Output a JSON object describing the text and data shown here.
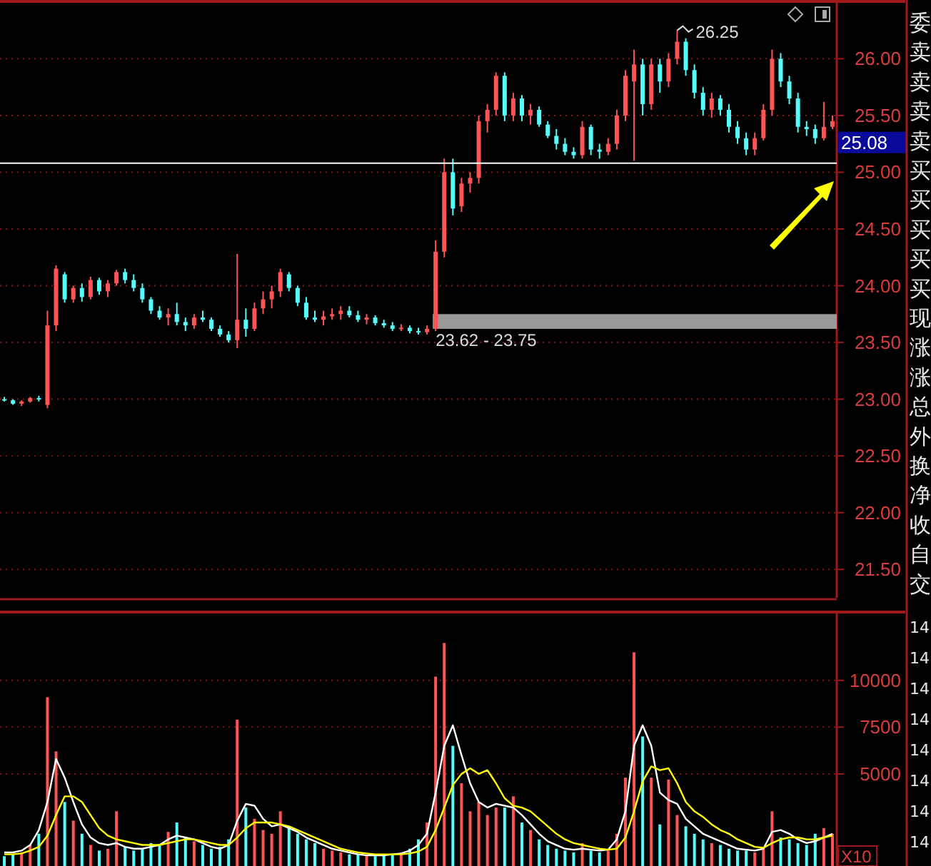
{
  "chart_data": [
    {
      "type": "candlestick",
      "categories": [
        null,
        null,
        null,
        null,
        null,
        null,
        null,
        null,
        null,
        null,
        null,
        null,
        null,
        null,
        null,
        null,
        null,
        null,
        null,
        null,
        null,
        null,
        null,
        null,
        null,
        null,
        null,
        null,
        null,
        null,
        null,
        null,
        null,
        null,
        null,
        null,
        null,
        null,
        null,
        null,
        null,
        null,
        null,
        null,
        null,
        null,
        null,
        null,
        null,
        null,
        null,
        null,
        null,
        null,
        null,
        null,
        null,
        null,
        null,
        null,
        null,
        null,
        null,
        null,
        null,
        null,
        null,
        null,
        null,
        null,
        null,
        null,
        null,
        null,
        null,
        null,
        null,
        null,
        null,
        null,
        null,
        null,
        null,
        null,
        null,
        null,
        null,
        null,
        null,
        null,
        null,
        null,
        null,
        null,
        null,
        null,
        null
      ],
      "ohlc": [
        [
          23.0,
          23.02,
          22.98,
          22.99
        ],
        [
          22.99,
          23.0,
          22.95,
          22.96
        ],
        [
          22.96,
          22.99,
          22.94,
          22.98
        ],
        [
          22.98,
          23.02,
          22.97,
          23.01
        ],
        [
          23.01,
          23.03,
          22.98,
          23.0
        ],
        [
          22.95,
          23.78,
          22.92,
          23.65
        ],
        [
          23.65,
          24.18,
          23.6,
          24.15
        ],
        [
          24.1,
          24.12,
          23.85,
          23.88
        ],
        [
          23.88,
          24.0,
          23.85,
          23.98
        ],
        [
          23.98,
          24.02,
          23.86,
          23.9
        ],
        [
          23.9,
          24.08,
          23.88,
          24.05
        ],
        [
          24.05,
          24.07,
          23.92,
          23.95
        ],
        [
          23.95,
          24.05,
          23.9,
          24.02
        ],
        [
          24.02,
          24.14,
          24.0,
          24.12
        ],
        [
          24.12,
          24.15,
          24.02,
          24.05
        ],
        [
          24.05,
          24.1,
          23.95,
          23.98
        ],
        [
          23.98,
          24.02,
          23.85,
          23.88
        ],
        [
          23.88,
          23.9,
          23.75,
          23.78
        ],
        [
          23.78,
          23.82,
          23.7,
          23.72
        ],
        [
          23.72,
          23.8,
          23.65,
          23.75
        ],
        [
          23.75,
          23.85,
          23.65,
          23.68
        ],
        [
          23.68,
          23.72,
          23.6,
          23.65
        ],
        [
          23.65,
          23.75,
          23.62,
          23.72
        ],
        [
          23.72,
          23.78,
          23.68,
          23.7
        ],
        [
          23.7,
          23.72,
          23.6,
          23.62
        ],
        [
          23.62,
          23.65,
          23.55,
          23.57
        ],
        [
          23.57,
          23.6,
          23.5,
          23.52
        ],
        [
          23.52,
          24.28,
          23.45,
          23.7
        ],
        [
          23.7,
          23.8,
          23.55,
          23.62
        ],
        [
          23.62,
          23.85,
          23.6,
          23.8
        ],
        [
          23.8,
          23.95,
          23.75,
          23.88
        ],
        [
          23.88,
          24.0,
          23.8,
          23.95
        ],
        [
          23.95,
          24.15,
          23.9,
          24.12
        ],
        [
          24.1,
          24.12,
          23.95,
          23.98
        ],
        [
          23.98,
          24.0,
          23.82,
          23.85
        ],
        [
          23.85,
          23.9,
          23.7,
          23.72
        ],
        [
          23.72,
          23.78,
          23.68,
          23.7
        ],
        [
          23.7,
          23.78,
          23.65,
          23.73
        ],
        [
          23.73,
          23.8,
          23.7,
          23.75
        ],
        [
          23.75,
          23.82,
          23.7,
          23.78
        ],
        [
          23.78,
          23.82,
          23.72,
          23.74
        ],
        [
          23.74,
          23.78,
          23.68,
          23.7
        ],
        [
          23.7,
          23.75,
          23.66,
          23.72
        ],
        [
          23.72,
          23.74,
          23.65,
          23.67
        ],
        [
          23.67,
          23.7,
          23.63,
          23.65
        ],
        [
          23.65,
          23.68,
          23.6,
          23.62
        ],
        [
          23.62,
          23.66,
          23.6,
          23.63
        ],
        [
          23.63,
          23.65,
          23.58,
          23.6
        ],
        [
          23.6,
          23.63,
          23.57,
          23.59
        ],
        [
          23.59,
          23.65,
          23.57,
          23.62
        ],
        [
          23.62,
          24.4,
          23.6,
          24.3
        ],
        [
          24.3,
          25.12,
          24.25,
          25.0
        ],
        [
          25.0,
          25.12,
          24.62,
          24.68
        ],
        [
          24.7,
          24.95,
          24.65,
          24.9
        ],
        [
          24.9,
          25.0,
          24.82,
          24.95
        ],
        [
          24.95,
          25.5,
          24.9,
          25.45
        ],
        [
          25.45,
          25.6,
          25.35,
          25.55
        ],
        [
          25.55,
          25.88,
          25.5,
          25.85
        ],
        [
          25.85,
          25.88,
          25.45,
          25.5
        ],
        [
          25.5,
          25.7,
          25.45,
          25.65
        ],
        [
          25.65,
          25.68,
          25.45,
          25.5
        ],
        [
          25.5,
          25.6,
          25.42,
          25.55
        ],
        [
          25.55,
          25.58,
          25.4,
          25.42
        ],
        [
          25.42,
          25.45,
          25.3,
          25.32
        ],
        [
          25.32,
          25.38,
          25.2,
          25.25
        ],
        [
          25.25,
          25.3,
          25.15,
          25.18
        ],
        [
          25.18,
          25.22,
          25.12,
          25.15
        ],
        [
          25.15,
          25.45,
          25.12,
          25.4
        ],
        [
          25.4,
          25.42,
          25.15,
          25.2
        ],
        [
          25.2,
          25.25,
          25.12,
          25.18
        ],
        [
          25.18,
          25.3,
          25.15,
          25.25
        ],
        [
          25.25,
          25.55,
          25.2,
          25.5
        ],
        [
          25.5,
          25.9,
          25.45,
          25.85
        ],
        [
          25.8,
          26.08,
          25.1,
          25.95
        ],
        [
          25.95,
          26.0,
          25.5,
          25.6
        ],
        [
          25.6,
          26.0,
          25.55,
          25.95
        ],
        [
          25.95,
          26.0,
          25.7,
          25.8
        ],
        [
          25.8,
          26.05,
          25.75,
          26.0
        ],
        [
          26.0,
          26.25,
          25.95,
          26.15
        ],
        [
          26.15,
          26.18,
          25.85,
          25.9
        ],
        [
          25.9,
          25.95,
          25.65,
          25.7
        ],
        [
          25.7,
          25.75,
          25.5,
          25.55
        ],
        [
          25.55,
          25.7,
          25.48,
          25.65
        ],
        [
          25.65,
          25.68,
          25.5,
          25.55
        ],
        [
          25.55,
          25.6,
          25.35,
          25.4
        ],
        [
          25.4,
          25.45,
          25.25,
          25.3
        ],
        [
          25.3,
          25.35,
          25.15,
          25.2
        ],
        [
          25.2,
          25.35,
          25.15,
          25.3
        ],
        [
          25.3,
          25.6,
          25.28,
          25.55
        ],
        [
          25.55,
          26.08,
          25.5,
          26.0
        ],
        [
          26.0,
          26.05,
          25.75,
          25.8
        ],
        [
          25.8,
          25.85,
          25.6,
          25.65
        ],
        [
          25.65,
          25.7,
          25.35,
          25.4
        ],
        [
          25.4,
          25.45,
          25.32,
          25.38
        ],
        [
          25.38,
          25.42,
          25.25,
          25.3
        ],
        [
          25.3,
          25.62,
          25.28,
          25.4
        ],
        [
          25.4,
          25.5,
          25.38,
          25.45
        ]
      ],
      "colors": [
        "#54fcfc",
        "#54fcfc",
        "#ff5454",
        "#ff5454",
        "#54fcfc",
        "#ff5454",
        "#ff5454",
        "#54fcfc",
        "#ff5454",
        "#54fcfc",
        "#ff5454",
        "#54fcfc",
        "#ff5454",
        "#ff5454",
        "#54fcfc",
        "#54fcfc",
        "#54fcfc",
        "#54fcfc",
        "#54fcfc",
        "#ff5454",
        "#54fcfc",
        "#54fcfc",
        "#ff5454",
        "#54fcfc",
        "#54fcfc",
        "#54fcfc",
        "#54fcfc",
        "#ff5454",
        "#54fcfc",
        "#ff5454",
        "#ff5454",
        "#ff5454",
        "#ff5454",
        "#54fcfc",
        "#54fcfc",
        "#54fcfc",
        "#54fcfc",
        "#ff5454",
        "#ff5454",
        "#ff5454",
        "#54fcfc",
        "#54fcfc",
        "#ff5454",
        "#54fcfc",
        "#54fcfc",
        "#54fcfc",
        "#ff5454",
        "#54fcfc",
        "#54fcfc",
        "#ff5454",
        "#ff5454",
        "#ff5454",
        "#54fcfc",
        "#ff5454",
        "#ff5454",
        "#ff5454",
        "#ff5454",
        "#ff5454",
        "#54fcfc",
        "#ff5454",
        "#54fcfc",
        "#ff5454",
        "#54fcfc",
        "#54fcfc",
        "#54fcfc",
        "#54fcfc",
        "#54fcfc",
        "#ff5454",
        "#54fcfc",
        "#54fcfc",
        "#ff5454",
        "#ff5454",
        "#ff5454",
        "#ff5454",
        "#54fcfc",
        "#ff5454",
        "#54fcfc",
        "#ff5454",
        "#ff5454",
        "#54fcfc",
        "#54fcfc",
        "#54fcfc",
        "#ff5454",
        "#54fcfc",
        "#54fcfc",
        "#54fcfc",
        "#54fcfc",
        "#ff5454",
        "#ff5454",
        "#ff5454",
        "#54fcfc",
        "#54fcfc",
        "#54fcfc",
        "#54fcfc",
        "#54fcfc",
        "#ff5454",
        "#ff5454"
      ],
      "ylim": [
        21.25,
        26.48
      ],
      "yticks": [
        {
          "value": 21.5,
          "label": "21.50"
        },
        {
          "value": 22,
          "label": "22.00"
        },
        {
          "value": 22.5,
          "label": "22.50"
        },
        {
          "value": 23,
          "label": "23.00"
        },
        {
          "value": 23.5,
          "label": "23.50"
        },
        {
          "value": 24,
          "label": "24.00"
        },
        {
          "value": 24.5,
          "label": "24.50"
        },
        {
          "value": 25,
          "label": "25.00"
        },
        {
          "value": 25.5,
          "label": "25.50"
        },
        {
          "value": 26,
          "label": "26.00"
        }
      ],
      "grid": "y",
      "ref_lines": [
        {
          "axis": "y",
          "value": 25.08,
          "label": "25.08",
          "color": "#ffffff"
        }
      ],
      "bands": [
        {
          "axis": "y",
          "from": 23.62,
          "to": 23.75,
          "label": "23.62 - 23.75",
          "color": "#999999"
        }
      ],
      "annotations": [
        "26.25"
      ]
    },
    {
      "type": "bar",
      "categories": [
        null,
        null,
        null,
        null,
        null,
        null,
        null,
        null,
        null,
        null,
        null,
        null,
        null,
        null,
        null,
        null,
        null,
        null,
        null,
        null,
        null,
        null,
        null,
        null,
        null,
        null,
        null,
        null,
        null,
        null,
        null,
        null,
        null,
        null,
        null,
        null,
        null,
        null,
        null,
        null,
        null,
        null,
        null,
        null,
        null,
        null,
        null,
        null,
        null,
        null,
        null,
        null,
        null,
        null,
        null,
        null,
        null,
        null,
        null,
        null,
        null,
        null,
        null,
        null,
        null,
        null,
        null,
        null,
        null,
        null,
        null,
        null,
        null,
        null,
        null,
        null,
        null,
        null,
        null,
        null,
        null,
        null,
        null,
        null,
        null,
        null,
        null,
        null,
        null,
        null,
        null,
        null,
        null,
        null,
        null,
        null,
        null
      ],
      "series": [
        {
          "values": [
            600,
            700,
            800,
            1200,
            1800,
            9100,
            6200,
            3500,
            2500,
            1800,
            1200,
            900,
            1000,
            3000,
            1100,
            900,
            1000,
            1300,
            1200,
            1900,
            2400,
            1600,
            1400,
            1200,
            1000,
            1100,
            1500,
            7900,
            3200,
            2600,
            2000,
            1800,
            3000,
            2200,
            1800,
            1500,
            1300,
            1000,
            900,
            800,
            700,
            700,
            600,
            600,
            700,
            700,
            800,
            1000,
            1500,
            2400,
            10200,
            12000,
            6500,
            4500,
            3000,
            3500,
            2800,
            3200,
            3200,
            3800,
            2400,
            2000,
            1500,
            1200,
            1000,
            900,
            800,
            1300,
            900,
            800,
            900,
            1800,
            4800,
            11500,
            7000,
            4800,
            2300,
            4700,
            2800,
            2200,
            1800,
            1500,
            1300,
            1200,
            1000,
            900,
            900,
            800,
            1100,
            3000,
            1600,
            1500,
            1300,
            1200,
            1800,
            2100,
            1800
          ],
          "colors": [
            "#54fcfc",
            "#54fcfc",
            "#ff5454",
            "#ff5454",
            "#54fcfc",
            "#ff5454",
            "#ff5454",
            "#54fcfc",
            "#ff5454",
            "#54fcfc",
            "#ff5454",
            "#54fcfc",
            "#ff5454",
            "#ff5454",
            "#54fcfc",
            "#54fcfc",
            "#54fcfc",
            "#54fcfc",
            "#54fcfc",
            "#ff5454",
            "#54fcfc",
            "#54fcfc",
            "#ff5454",
            "#54fcfc",
            "#54fcfc",
            "#54fcfc",
            "#54fcfc",
            "#ff5454",
            "#54fcfc",
            "#ff5454",
            "#ff5454",
            "#ff5454",
            "#ff5454",
            "#54fcfc",
            "#54fcfc",
            "#54fcfc",
            "#54fcfc",
            "#ff5454",
            "#ff5454",
            "#ff5454",
            "#54fcfc",
            "#54fcfc",
            "#ff5454",
            "#54fcfc",
            "#54fcfc",
            "#54fcfc",
            "#ff5454",
            "#54fcfc",
            "#54fcfc",
            "#ff5454",
            "#ff5454",
            "#ff5454",
            "#54fcfc",
            "#ff5454",
            "#ff5454",
            "#ff5454",
            "#ff5454",
            "#ff5454",
            "#54fcfc",
            "#ff5454",
            "#54fcfc",
            "#ff5454",
            "#54fcfc",
            "#54fcfc",
            "#54fcfc",
            "#54fcfc",
            "#54fcfc",
            "#ff5454",
            "#54fcfc",
            "#54fcfc",
            "#ff5454",
            "#ff5454",
            "#ff5454",
            "#ff5454",
            "#54fcfc",
            "#ff5454",
            "#54fcfc",
            "#ff5454",
            "#ff5454",
            "#54fcfc",
            "#54fcfc",
            "#54fcfc",
            "#ff5454",
            "#54fcfc",
            "#54fcfc",
            "#54fcfc",
            "#54fcfc",
            "#ff5454",
            "#ff5454",
            "#ff5454",
            "#54fcfc",
            "#54fcfc",
            "#54fcfc",
            "#54fcfc",
            "#54fcfc",
            "#ff5454",
            "#ff5454"
          ]
        },
        {
          "type": "line",
          "color": "#ffffff",
          "values": [
            800,
            800,
            900,
            1200,
            2000,
            3500,
            5800,
            4800,
            3500,
            2300,
            1600,
            1300,
            1200,
            1300,
            1100,
            1000,
            1000,
            1100,
            1200,
            1500,
            1700,
            1600,
            1500,
            1300,
            1100,
            1000,
            1200,
            2500,
            3400,
            3300,
            2600,
            2200,
            2300,
            2100,
            1900,
            1600,
            1400,
            1200,
            1000,
            900,
            800,
            700,
            650,
            650,
            650,
            700,
            750,
            900,
            1200,
            1800,
            4000,
            6500,
            7600,
            6000,
            4500,
            3500,
            3200,
            3400,
            3300,
            3200,
            2800,
            2300,
            1800,
            1400,
            1200,
            1000,
            950,
            1000,
            950,
            900,
            950,
            1500,
            3000,
            6500,
            7600,
            6500,
            4000,
            3600,
            3400,
            2600,
            2200,
            1800,
            1600,
            1400,
            1200,
            1000,
            950,
            900,
            1000,
            1900,
            2000,
            1800,
            1500,
            1300,
            1400,
            1600,
            1800
          ]
        },
        {
          "type": "line",
          "color": "#ffff00",
          "values": [
            700,
            700,
            750,
            900,
            1100,
            1700,
            2800,
            3800,
            3800,
            3500,
            2800,
            2100,
            1700,
            1500,
            1400,
            1300,
            1200,
            1200,
            1200,
            1300,
            1400,
            1500,
            1500,
            1400,
            1300,
            1200,
            1200,
            1600,
            2100,
            2400,
            2400,
            2400,
            2300,
            2200,
            2000,
            1800,
            1600,
            1400,
            1200,
            1000,
            900,
            800,
            750,
            700,
            700,
            700,
            700,
            750,
            850,
            1100,
            2000,
            3200,
            4400,
            5000,
            5300,
            5000,
            5200,
            4500,
            3700,
            3300,
            3200,
            3000,
            2600,
            2200,
            1800,
            1500,
            1300,
            1200,
            1100,
            1000,
            950,
            1000,
            1600,
            3000,
            4600,
            5400,
            5200,
            5300,
            4500,
            3500,
            3000,
            2700,
            2300,
            2000,
            1800,
            1500,
            1300,
            1100,
            1050,
            1300,
            1500,
            1600,
            1600,
            1500,
            1500,
            1600,
            1700
          ]
        }
      ],
      "ylim": [
        0,
        13500
      ],
      "yticks": [
        5000,
        7500,
        10000
      ],
      "grid": "y",
      "annotations": [
        "X10"
      ]
    },
    {
      "type": "other",
      "annotations": [
        "委",
        "卖",
        "卖",
        "卖",
        "卖",
        "买",
        "买",
        "买",
        "买",
        "买",
        "现",
        "涨",
        "涨",
        "总",
        "外",
        "换",
        "净",
        "收",
        "自",
        "交",
        "14",
        "14",
        "14",
        "14",
        "14",
        "14",
        "14",
        "14"
      ]
    }
  ]
}
